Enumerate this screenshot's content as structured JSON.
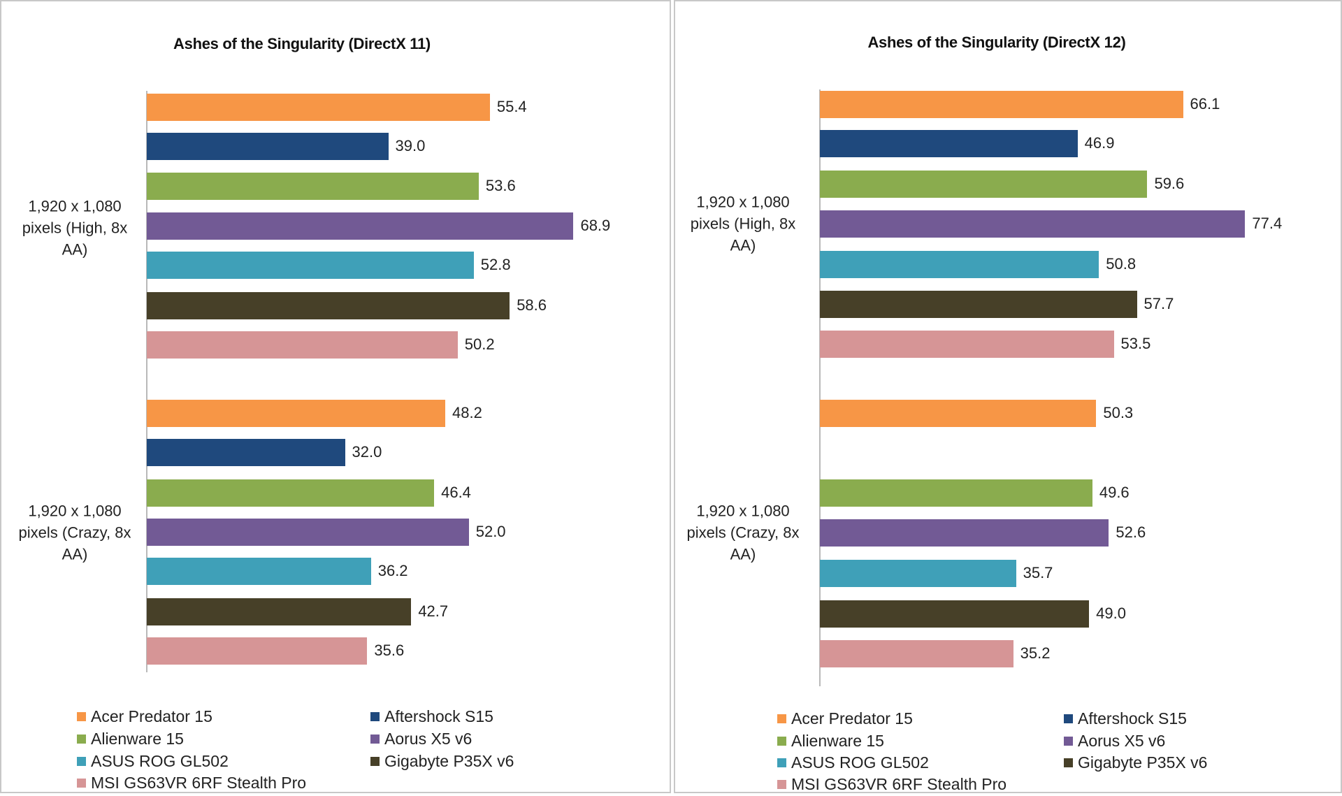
{
  "chart_data": [
    {
      "type": "bar",
      "orientation": "horizontal",
      "title": "Ashes of the Singularity (DirectX 11)",
      "xlabel": "",
      "ylabel": "",
      "categories": [
        "1,920 x 1,080 pixels (High, 8x AA)",
        "1,920 x 1,080 pixels (Crazy, 8x AA)"
      ],
      "grid": false,
      "legend_position": "bottom",
      "series": [
        {
          "name": "Acer Predator 15",
          "color": "#f79646",
          "values": [
            55.4,
            48.2
          ]
        },
        {
          "name": "Aftershock S15",
          "color": "#1f497d",
          "values": [
            39.0,
            32.0
          ]
        },
        {
          "name": "Alienware 15",
          "color": "#8aac4e",
          "values": [
            53.6,
            46.4
          ]
        },
        {
          "name": "Aorus X5 v6",
          "color": "#725a95",
          "values": [
            68.9,
            52.0
          ]
        },
        {
          "name": "ASUS ROG GL502",
          "color": "#3fa0b8",
          "values": [
            52.8,
            36.2
          ]
        },
        {
          "name": "Gigabyte P35X v6",
          "color": "#474028",
          "values": [
            58.6,
            42.7
          ]
        },
        {
          "name": "MSI GS63VR 6RF Stealth Pro",
          "color": "#d69596",
          "values": [
            50.2,
            35.6
          ]
        }
      ]
    },
    {
      "type": "bar",
      "orientation": "horizontal",
      "title": "Ashes of the Singularity (DirectX 12)",
      "xlabel": "",
      "ylabel": "",
      "categories": [
        "1,920 x 1,080 pixels (High, 8x AA)",
        "1,920 x 1,080 pixels (Crazy, 8x AA)"
      ],
      "grid": false,
      "legend_position": "bottom",
      "series": [
        {
          "name": "Acer Predator 15",
          "color": "#f79646",
          "values": [
            66.1,
            50.3
          ]
        },
        {
          "name": "Aftershock S15",
          "color": "#1f497d",
          "values": [
            46.9,
            null
          ]
        },
        {
          "name": "Alienware 15",
          "color": "#8aac4e",
          "values": [
            59.6,
            49.6
          ]
        },
        {
          "name": "Aorus X5 v6",
          "color": "#725a95",
          "values": [
            77.4,
            52.6
          ]
        },
        {
          "name": "ASUS ROG GL502",
          "color": "#3fa0b8",
          "values": [
            50.8,
            35.7
          ]
        },
        {
          "name": "Gigabyte P35X v6",
          "color": "#474028",
          "values": [
            57.7,
            49.0
          ]
        },
        {
          "name": "MSI GS63VR 6RF Stealth Pro",
          "color": "#d69596",
          "values": [
            53.5,
            35.2
          ]
        }
      ]
    }
  ]
}
